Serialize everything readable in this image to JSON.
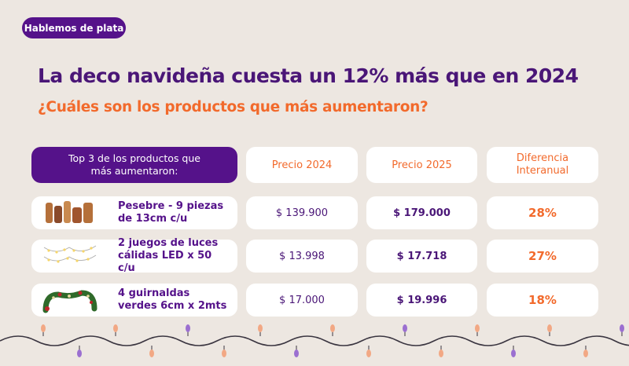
{
  "badge": "Hablemos de plata",
  "title": "La deco navideña cuesta un 12% más que en 2024",
  "subtitle": {
    "before": "¿Cuáles son los productos que ",
    "highlight": "más",
    "after": " aumentaron?"
  },
  "colors": {
    "purple": "#55128a",
    "orange": "#f26a2c",
    "background": "#ede7e1"
  },
  "table": {
    "headers": [
      "Top 3 de los productos que más aumentaron:",
      "Precio 2024",
      "Precio 2025",
      "Diferencia Interanual"
    ],
    "rows": [
      {
        "product": "Pesebre - 9 piezas de 13cm c/u",
        "icon": "nativity-figures-image",
        "price_2024": "$ 139.900",
        "price_2025": "$ 179.000",
        "diff": "28%"
      },
      {
        "product": "2 juegos de luces cálidas LED x 50 c/u",
        "icon": "string-lights-image",
        "price_2024": "$ 13.998",
        "price_2025": "$ 17.718",
        "diff": "27%"
      },
      {
        "product": "4 guirnaldas verdes 6cm x 2mts",
        "icon": "green-garland-image",
        "price_2024": "$ 17.000",
        "price_2025": "$ 19.996",
        "diff": "18%"
      }
    ]
  }
}
